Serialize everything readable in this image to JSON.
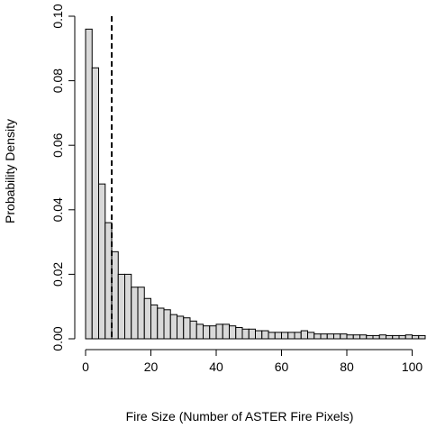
{
  "chart_data": {
    "type": "bar",
    "subtype": "histogram",
    "title": "",
    "xlabel": "Fire Size (Number of ASTER Fire Pixels)",
    "ylabel": "Probability Density",
    "xlim": [
      0,
      104
    ],
    "ylim": [
      0,
      0.1
    ],
    "bin_width": 2,
    "bin_start": 0,
    "x_ticks": [
      0,
      20,
      40,
      60,
      80,
      100
    ],
    "y_ticks": [
      0.0,
      0.02,
      0.04,
      0.06,
      0.08,
      0.1
    ],
    "y_tick_labels": [
      "0.00",
      "0.02",
      "0.04",
      "0.06",
      "0.08",
      "0.10"
    ],
    "values": [
      0.096,
      0.084,
      0.048,
      0.036,
      0.027,
      0.02,
      0.02,
      0.016,
      0.016,
      0.0125,
      0.0105,
      0.0095,
      0.009,
      0.0075,
      0.007,
      0.0065,
      0.0055,
      0.0045,
      0.004,
      0.004,
      0.0045,
      0.0045,
      0.004,
      0.0035,
      0.003,
      0.003,
      0.0025,
      0.0025,
      0.002,
      0.002,
      0.002,
      0.002,
      0.002,
      0.0025,
      0.002,
      0.0015,
      0.0015,
      0.0015,
      0.0015,
      0.0015,
      0.0012,
      0.0012,
      0.0012,
      0.001,
      0.001,
      0.0012,
      0.001,
      0.001,
      0.001,
      0.0012,
      0.001,
      0.001
    ],
    "vline_x": 8,
    "vline_style": "dashed",
    "bar_color": "#d9d9d9",
    "bar_edge_color": "#000000",
    "grid": false,
    "legend": "none"
  }
}
